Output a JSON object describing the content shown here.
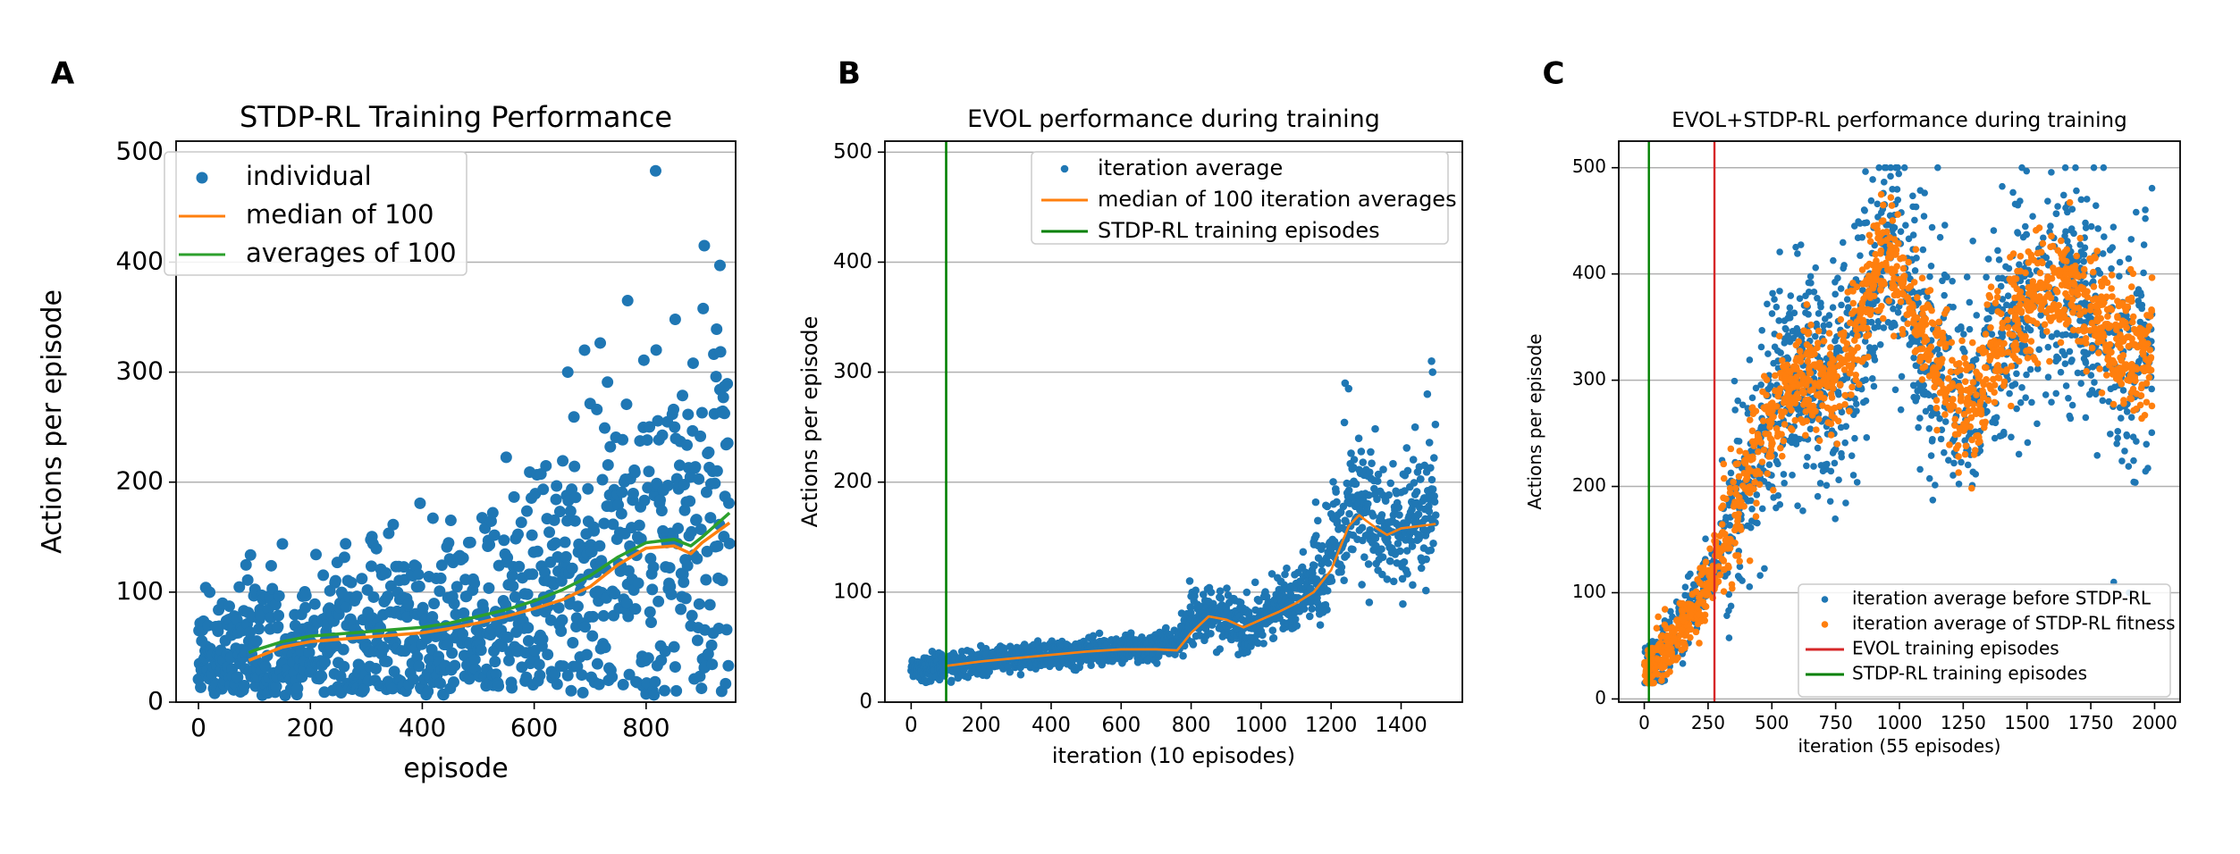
{
  "chart_data": [
    {
      "panel": "A",
      "type": "scatter",
      "title": "STDP-RL Training Performance",
      "xlabel": "episode",
      "ylabel": "Actions per episode",
      "xlim": [
        -40,
        960
      ],
      "ylim": [
        0,
        510
      ],
      "xticks": [
        0,
        200,
        400,
        600,
        800
      ],
      "yticks": [
        0,
        100,
        200,
        300,
        400,
        500
      ],
      "grid": "horizontal",
      "legend_position": "top-left",
      "n_points": 950,
      "series": [
        {
          "name": "individual",
          "type": "scatter",
          "color": "#1f77b4",
          "trend": [
            [
              0,
              35
            ],
            [
              100,
              45
            ],
            [
              200,
              55
            ],
            [
              300,
              60
            ],
            [
              400,
              65
            ],
            [
              500,
              75
            ],
            [
              600,
              90
            ],
            [
              700,
              115
            ],
            [
              800,
              140
            ],
            [
              850,
              145
            ],
            [
              900,
              150
            ],
            [
              949,
              170
            ]
          ],
          "highlights": [
            [
              817,
              483
            ],
            [
              904,
              415
            ],
            [
              932,
              397
            ],
            [
              767,
              365
            ],
            [
              852,
              348
            ],
            [
              690,
              320
            ],
            [
              660,
              300
            ],
            [
              940,
              287
            ]
          ]
        },
        {
          "name": "median of 100",
          "type": "line",
          "color": "#ff7f0e",
          "x": [
            90,
            100,
            150,
            200,
            250,
            300,
            350,
            400,
            450,
            500,
            550,
            600,
            650,
            700,
            750,
            800,
            850,
            880,
            900,
            949
          ],
          "y": [
            38,
            40,
            50,
            55,
            57,
            59,
            61,
            63,
            67,
            72,
            78,
            85,
            93,
            105,
            125,
            140,
            142,
            135,
            145,
            163
          ]
        },
        {
          "name": "averages of 100",
          "type": "line",
          "color": "#2ca02c",
          "x": [
            90,
            100,
            150,
            200,
            250,
            300,
            350,
            400,
            450,
            500,
            550,
            600,
            650,
            700,
            750,
            800,
            850,
            880,
            900,
            949
          ],
          "y": [
            45,
            47,
            55,
            60,
            62,
            64,
            66,
            68,
            72,
            78,
            84,
            92,
            102,
            115,
            132,
            145,
            148,
            142,
            150,
            172
          ]
        }
      ]
    },
    {
      "panel": "B",
      "type": "scatter",
      "title": "EVOL performance during training",
      "xlabel": "iteration (10 episodes)",
      "ylabel": "Actions per episode",
      "xlim": [
        -75,
        1575
      ],
      "ylim": [
        0,
        510
      ],
      "xticks": [
        0,
        200,
        400,
        600,
        800,
        1000,
        1200,
        1400
      ],
      "yticks": [
        0,
        100,
        200,
        300,
        400,
        500
      ],
      "grid": "horizontal",
      "legend_position": "top-right",
      "n_points": 1500,
      "series": [
        {
          "name": "iteration average",
          "type": "scatter",
          "color": "#1f77b4",
          "trend": [
            [
              0,
              30
            ],
            [
              100,
              33
            ],
            [
              200,
              38
            ],
            [
              400,
              42
            ],
            [
              600,
              48
            ],
            [
              700,
              50
            ],
            [
              760,
              55
            ],
            [
              800,
              75
            ],
            [
              850,
              80
            ],
            [
              900,
              75
            ],
            [
              950,
              70
            ],
            [
              1000,
              78
            ],
            [
              1100,
              95
            ],
            [
              1150,
              115
            ],
            [
              1200,
              140
            ],
            [
              1250,
              180
            ],
            [
              1300,
              170
            ],
            [
              1350,
              150
            ],
            [
              1400,
              155
            ],
            [
              1450,
              170
            ],
            [
              1499,
              190
            ]
          ],
          "highlights": [
            [
              1487,
              310
            ],
            [
              1490,
              300
            ],
            [
              1240,
              290
            ],
            [
              1250,
              285
            ],
            [
              1440,
              250
            ],
            [
              1475,
              280
            ]
          ]
        },
        {
          "name": "median of 100 iteration averages",
          "type": "line",
          "color": "#ff7f0e",
          "x": [
            100,
            200,
            300,
            400,
            500,
            600,
            700,
            760,
            800,
            850,
            900,
            950,
            1000,
            1050,
            1100,
            1150,
            1200,
            1250,
            1280,
            1300,
            1330,
            1360,
            1400,
            1450,
            1499
          ],
          "y": [
            33,
            37,
            40,
            43,
            46,
            48,
            48,
            47,
            63,
            78,
            75,
            68,
            75,
            82,
            90,
            100,
            120,
            160,
            170,
            165,
            158,
            152,
            158,
            160,
            162
          ]
        },
        {
          "name": "STDP-RL training episodes",
          "type": "vline",
          "color": "#008000",
          "x": 100
        }
      ]
    },
    {
      "panel": "C",
      "type": "scatter",
      "title": "EVOL+STDP-RL performance during training",
      "xlabel": "iteration (55 episodes)",
      "ylabel": "Actions per episode",
      "xlim": [
        -100,
        2100
      ],
      "ylim": [
        -3,
        525
      ],
      "xticks": [
        0,
        250,
        500,
        750,
        1000,
        1250,
        1500,
        1750,
        2000
      ],
      "yticks": [
        0,
        100,
        200,
        300,
        400,
        500
      ],
      "grid": "horizontal",
      "legend_position": "bottom-right",
      "series": [
        {
          "name": "iteration average before STDP-RL",
          "type": "scatter",
          "color": "#1f77b4",
          "trend": [
            [
              0,
              30
            ],
            [
              100,
              50
            ],
            [
              200,
              90
            ],
            [
              280,
              130
            ],
            [
              350,
              180
            ],
            [
              450,
              240
            ],
            [
              550,
              290
            ],
            [
              650,
              310
            ],
            [
              750,
              300
            ],
            [
              850,
              360
            ],
            [
              950,
              420
            ],
            [
              1000,
              400
            ],
            [
              1100,
              340
            ],
            [
              1200,
              300
            ],
            [
              1300,
              270
            ],
            [
              1350,
              320
            ],
            [
              1450,
              360
            ],
            [
              1550,
              380
            ],
            [
              1650,
              390
            ],
            [
              1750,
              370
            ],
            [
              1850,
              330
            ],
            [
              1950,
              320
            ],
            [
              1990,
              330
            ]
          ],
          "highlights": [
            [
              920,
              500
            ],
            [
              1020,
              500
            ],
            [
              1150,
              500
            ],
            [
              1480,
              500
            ],
            [
              1690,
              500
            ],
            [
              1800,
              500
            ],
            [
              1840,
              110
            ],
            [
              1900,
              100
            ]
          ]
        },
        {
          "name": "iteration average of STDP-RL fitness",
          "type": "scatter",
          "color": "#ff7f0e",
          "trend": [
            [
              0,
              28
            ],
            [
              100,
              48
            ],
            [
              200,
              85
            ],
            [
              280,
              125
            ],
            [
              350,
              175
            ],
            [
              450,
              235
            ],
            [
              550,
              285
            ],
            [
              650,
              305
            ],
            [
              750,
              295
            ],
            [
              850,
              360
            ],
            [
              950,
              425
            ],
            [
              1000,
              400
            ],
            [
              1100,
              340
            ],
            [
              1200,
              300
            ],
            [
              1300,
              265
            ],
            [
              1350,
              320
            ],
            [
              1450,
              360
            ],
            [
              1550,
              380
            ],
            [
              1650,
              395
            ],
            [
              1750,
              375
            ],
            [
              1850,
              335
            ],
            [
              1950,
              320
            ],
            [
              1990,
              330
            ]
          ]
        },
        {
          "name": "EVOL training episodes",
          "type": "vline",
          "color": "#d62728",
          "x": 275
        },
        {
          "name": "STDP-RL training episodes",
          "type": "vline",
          "color": "#008000",
          "x": 18
        }
      ]
    }
  ],
  "panels": [
    {
      "letter": "A",
      "title": "STDP-RL Training Performance",
      "xlabel": "episode",
      "ylabel": "Actions per episode",
      "legend": [
        "individual",
        "median of 100",
        "averages of 100"
      ]
    },
    {
      "letter": "B",
      "title": "EVOL performance during training",
      "xlabel": "iteration (10 episodes)",
      "ylabel": "Actions per episode",
      "legend": [
        "iteration average",
        "median of 100 iteration averages",
        "STDP-RL training episodes"
      ]
    },
    {
      "letter": "C",
      "title": "EVOL+STDP-RL performance during training",
      "xlabel": "iteration (55 episodes)",
      "ylabel": "Actions per episode",
      "legend": [
        "iteration average before STDP-RL",
        "iteration average of STDP-RL fitness",
        "EVOL training episodes",
        "STDP-RL training episodes"
      ]
    }
  ]
}
